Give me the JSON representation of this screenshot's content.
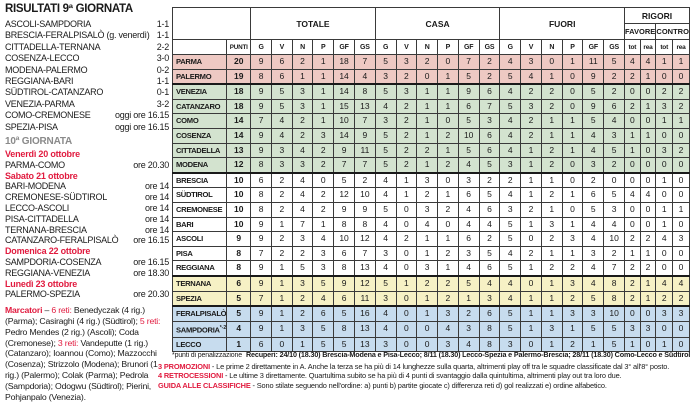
{
  "page": {
    "accent_red": "#e11b3f",
    "background": "#ffffff"
  },
  "left_panel": {
    "title": "RISULTATI 9ª GIORNATA",
    "results": [
      {
        "match": "ASCOLI-SAMPDORIA",
        "score": "1-1"
      },
      {
        "match": "BRESCIA-FERALPISALÒ (g. venerdì)",
        "score": "1-1"
      },
      {
        "match": "CITTADELLA-TERNANA",
        "score": "2-2"
      },
      {
        "match": "COSENZA-LECCO",
        "score": "3-0"
      },
      {
        "match": "MODENA-PALERMO",
        "score": "0-2"
      },
      {
        "match": "REGGIANA-BARI",
        "score": "1-1"
      },
      {
        "match": "SÜDTIROL-CATANZARO",
        "score": "0-1"
      },
      {
        "match": "VENEZIA-PARMA",
        "score": "3-2"
      },
      {
        "match": "COMO-CREMONESE",
        "score": "oggi ore 16.15"
      },
      {
        "match": "SPEZIA-PISA",
        "score": "oggi ore 16.15"
      }
    ],
    "next_round": {
      "title": "10ª GIORNATA",
      "sections": [
        {
          "date": "Venerdì 20 ottobre",
          "fixtures": [
            {
              "match": "PARMA-COMO",
              "time": "ore 20.30"
            }
          ]
        },
        {
          "date": "Sabato 21 ottobre",
          "fixtures": [
            {
              "match": "BARI-MODENA",
              "time": "ore 14"
            },
            {
              "match": "CREMONESE-SÜDTIROL",
              "time": "ore 14"
            },
            {
              "match": "LECCO-ASCOLI",
              "time": "ore 14"
            },
            {
              "match": "PISA-CITTADELLA",
              "time": "ore 14"
            },
            {
              "match": "TERNANA-BRESCIA",
              "time": "ore 14"
            },
            {
              "match": "CATANZARO-FERALPISALÒ",
              "time": "ore 16.15"
            }
          ]
        },
        {
          "date": "Domenica 22 ottobre",
          "fixtures": [
            {
              "match": "SAMPDORIA-COSENZA",
              "time": "ore 16.15"
            },
            {
              "match": "REGGIANA-VENEZIA",
              "time": "ore 18.30"
            }
          ]
        },
        {
          "date": "Lunedì 23 ottobre",
          "fixtures": [
            {
              "match": "PALERMO-SPEZIA",
              "time": "ore 20.30"
            }
          ]
        }
      ]
    },
    "scorers_segments": [
      {
        "text": "Marcatori",
        "style": "red-bold"
      },
      {
        "text": " – ",
        "style": "plain"
      },
      {
        "text": "6 reti: ",
        "style": "red"
      },
      {
        "text": "Benedyczak (4 rig.) (Parma); Casiraghi (4 rig.) (Südtirol); ",
        "style": "plain"
      },
      {
        "text": "5 reti: ",
        "style": "red"
      },
      {
        "text": "Pedro Mendes (2 rig.) (Ascoli); Coda (Cremonese); ",
        "style": "plain"
      },
      {
        "text": "3 reti: ",
        "style": "red"
      },
      {
        "text": "Vandeputte (1 rig.) (Catanzaro); Ioannou (Como); Mazzocchi (Cosenza); Strizzolo (Modena); Brunori (1 rig.) (Palermo); Colak (Parma); Pedrola (Sampdoria); Odogwu (Südtirol); Pierini, Pohjanpalo (Venezia).",
        "style": "plain"
      }
    ]
  },
  "table": {
    "punti_label": "PUNTI",
    "groups": {
      "totale": "TOTALE",
      "casa": "CASA",
      "fuori": "FUORI",
      "rigori": "RIGORI",
      "favore": "FAVORE",
      "contro": "CONTRO"
    },
    "stat_cols": [
      "G",
      "V",
      "N",
      "P",
      "GF",
      "GS"
    ],
    "rigori_cols": [
      "tot",
      "rea",
      "tot",
      "rea"
    ],
    "zone_colors": {
      "promo": "#eec9c3",
      "playoff": "#d3e3cf",
      "none": "#ffffff",
      "playout": "#f6f1c5",
      "releg": "#c7dcee"
    },
    "rows": [
      {
        "team": "PARMA",
        "sup": "",
        "zone": "promo",
        "punti": 20,
        "totale": [
          9,
          6,
          2,
          1,
          18,
          7
        ],
        "casa": [
          5,
          3,
          2,
          0,
          7,
          2
        ],
        "fuori": [
          4,
          3,
          0,
          1,
          11,
          5
        ],
        "rigori": [
          4,
          4,
          1,
          1
        ]
      },
      {
        "team": "PALERMO",
        "sup": "",
        "zone": "promo",
        "punti": 19,
        "totale": [
          8,
          6,
          1,
          1,
          14,
          4
        ],
        "casa": [
          3,
          2,
          0,
          1,
          5,
          2
        ],
        "fuori": [
          5,
          4,
          1,
          0,
          9,
          2
        ],
        "rigori": [
          2,
          1,
          0,
          0
        ]
      },
      {
        "team": "VENEZIA",
        "sup": "",
        "zone": "playoff",
        "punti": 18,
        "totale": [
          9,
          5,
          3,
          1,
          14,
          8
        ],
        "casa": [
          5,
          3,
          1,
          1,
          9,
          6
        ],
        "fuori": [
          4,
          2,
          2,
          0,
          5,
          2
        ],
        "rigori": [
          0,
          0,
          2,
          2
        ]
      },
      {
        "team": "CATANZARO",
        "sup": "",
        "zone": "playoff",
        "punti": 18,
        "totale": [
          9,
          5,
          3,
          1,
          15,
          13
        ],
        "casa": [
          4,
          2,
          1,
          1,
          6,
          7
        ],
        "fuori": [
          5,
          3,
          2,
          0,
          9,
          6
        ],
        "rigori": [
          2,
          1,
          3,
          2
        ]
      },
      {
        "team": "COMO",
        "sup": "",
        "zone": "playoff",
        "punti": 14,
        "totale": [
          7,
          4,
          2,
          1,
          10,
          7
        ],
        "casa": [
          3,
          2,
          1,
          0,
          5,
          3
        ],
        "fuori": [
          4,
          2,
          1,
          1,
          5,
          4
        ],
        "rigori": [
          0,
          0,
          1,
          1
        ]
      },
      {
        "team": "COSENZA",
        "sup": "",
        "zone": "playoff",
        "punti": 14,
        "totale": [
          9,
          4,
          2,
          3,
          14,
          9
        ],
        "casa": [
          5,
          2,
          1,
          2,
          10,
          6
        ],
        "fuori": [
          4,
          2,
          1,
          1,
          4,
          3
        ],
        "rigori": [
          1,
          1,
          0,
          0
        ]
      },
      {
        "team": "CITTADELLA",
        "sup": "",
        "zone": "playoff",
        "punti": 13,
        "totale": [
          9,
          3,
          4,
          2,
          9,
          11
        ],
        "casa": [
          5,
          2,
          2,
          1,
          5,
          6
        ],
        "fuori": [
          4,
          1,
          2,
          1,
          4,
          5
        ],
        "rigori": [
          1,
          0,
          3,
          2
        ]
      },
      {
        "team": "MODENA",
        "sup": "",
        "zone": "playoff",
        "punti": 12,
        "totale": [
          8,
          3,
          3,
          2,
          7,
          7
        ],
        "casa": [
          5,
          2,
          1,
          2,
          4,
          5
        ],
        "fuori": [
          3,
          1,
          2,
          0,
          3,
          2
        ],
        "rigori": [
          0,
          0,
          0,
          0
        ]
      },
      {
        "team": "BRESCIA",
        "sup": "",
        "zone": "none",
        "punti": 10,
        "totale": [
          6,
          2,
          4,
          0,
          5,
          2
        ],
        "casa": [
          4,
          1,
          3,
          0,
          3,
          2
        ],
        "fuori": [
          2,
          1,
          1,
          0,
          2,
          0
        ],
        "rigori": [
          0,
          0,
          1,
          0
        ]
      },
      {
        "team": "SÜDTIROL",
        "sup": "",
        "zone": "none",
        "punti": 10,
        "totale": [
          8,
          2,
          4,
          2,
          12,
          10
        ],
        "casa": [
          4,
          1,
          2,
          1,
          6,
          5
        ],
        "fuori": [
          4,
          1,
          2,
          1,
          6,
          5
        ],
        "rigori": [
          4,
          4,
          0,
          0
        ]
      },
      {
        "team": "CREMONESE",
        "sup": "",
        "zone": "none",
        "punti": 10,
        "totale": [
          8,
          2,
          4,
          2,
          9,
          9
        ],
        "casa": [
          5,
          0,
          3,
          2,
          4,
          6
        ],
        "fuori": [
          3,
          2,
          1,
          0,
          5,
          3
        ],
        "rigori": [
          0,
          0,
          1,
          1
        ]
      },
      {
        "team": "BARI",
        "sup": "",
        "zone": "none",
        "punti": 10,
        "totale": [
          9,
          1,
          7,
          1,
          8,
          8
        ],
        "casa": [
          4,
          0,
          4,
          0,
          4,
          4
        ],
        "fuori": [
          5,
          1,
          3,
          1,
          4,
          4
        ],
        "rigori": [
          0,
          0,
          1,
          0
        ]
      },
      {
        "team": "ASCOLI",
        "sup": "",
        "zone": "none",
        "punti": 9,
        "totale": [
          9,
          2,
          3,
          4,
          10,
          12
        ],
        "casa": [
          4,
          2,
          1,
          1,
          6,
          2
        ],
        "fuori": [
          5,
          0,
          2,
          3,
          4,
          10
        ],
        "rigori": [
          2,
          2,
          4,
          3
        ]
      },
      {
        "team": "PISA",
        "sup": "",
        "zone": "none",
        "punti": 8,
        "totale": [
          7,
          2,
          2,
          3,
          6,
          7
        ],
        "casa": [
          3,
          0,
          1,
          2,
          3,
          5
        ],
        "fuori": [
          4,
          2,
          1,
          1,
          3,
          2
        ],
        "rigori": [
          1,
          1,
          0,
          0
        ]
      },
      {
        "team": "REGGIANA",
        "sup": "",
        "zone": "none",
        "punti": 8,
        "totale": [
          9,
          1,
          5,
          3,
          8,
          13
        ],
        "casa": [
          4,
          0,
          3,
          1,
          4,
          6
        ],
        "fuori": [
          5,
          1,
          2,
          2,
          4,
          7
        ],
        "rigori": [
          2,
          2,
          0,
          0
        ]
      },
      {
        "team": "TERNANA",
        "sup": "",
        "zone": "playout",
        "punti": 6,
        "totale": [
          9,
          1,
          3,
          5,
          9,
          12
        ],
        "casa": [
          5,
          1,
          2,
          2,
          5,
          4
        ],
        "fuori": [
          4,
          0,
          1,
          3,
          4,
          8
        ],
        "rigori": [
          2,
          1,
          4,
          4
        ]
      },
      {
        "team": "SPEZIA",
        "sup": "",
        "zone": "playout",
        "punti": 5,
        "totale": [
          7,
          1,
          2,
          4,
          6,
          11
        ],
        "casa": [
          3,
          0,
          1,
          2,
          1,
          3
        ],
        "fuori": [
          4,
          1,
          1,
          2,
          5,
          8
        ],
        "rigori": [
          2,
          1,
          2,
          2
        ]
      },
      {
        "team": "FERALPISALÒ",
        "sup": "",
        "zone": "releg",
        "punti": 5,
        "totale": [
          9,
          1,
          2,
          6,
          5,
          16
        ],
        "casa": [
          4,
          0,
          1,
          3,
          2,
          6
        ],
        "fuori": [
          5,
          1,
          1,
          3,
          3,
          10
        ],
        "rigori": [
          0,
          0,
          3,
          3
        ]
      },
      {
        "team": "SAMPDORIA",
        "sup": "*-2",
        "zone": "releg",
        "punti": 4,
        "totale": [
          9,
          1,
          3,
          5,
          8,
          13
        ],
        "casa": [
          4,
          0,
          0,
          4,
          3,
          8
        ],
        "fuori": [
          5,
          1,
          3,
          1,
          5,
          5
        ],
        "rigori": [
          3,
          3,
          0,
          0
        ]
      },
      {
        "team": "LECCO",
        "sup": "",
        "zone": "releg",
        "punti": 1,
        "totale": [
          6,
          0,
          1,
          5,
          5,
          13
        ],
        "casa": [
          3,
          0,
          0,
          3,
          4,
          8
        ],
        "fuori": [
          3,
          0,
          1,
          2,
          1,
          5
        ],
        "rigori": [
          1,
          0,
          1,
          0
        ]
      }
    ]
  },
  "footnotes": {
    "penalty_note": "*punti di penalizzazione",
    "recuperi": "Recuperi: 24/10 (18.30) Brescia-Modena e Pisa-Lecco; 8/11 (18.30) Lecco-Spezia e Palermo-Brescia; 28/11 (18.30) Como-Lecco e Südtirol-Brescia",
    "notes": [
      {
        "label": "3 PROMOZIONI",
        "text": " - Le prime 2 direttamente in A. Anche la terza se ha più di 14 lunghezze sulla quarta, altrimenti play off tra le squadre classificate dal 3° all'8° posto."
      },
      {
        "label": "4 RETROCESSIONI",
        "text": " - Le ultime 3 direttamente. Quartultima subito se ha più di 4 punti di svantaggio dalla quintultima, altrimenti play out tra loro due."
      },
      {
        "label": "GUIDA ALLE CLASSIFICHE",
        "text": " - Sono stilate seguendo nell'ordine: a) punti b) partite giocate c) differenza reti d) gol realizzati e) ordine alfabetico."
      }
    ]
  }
}
